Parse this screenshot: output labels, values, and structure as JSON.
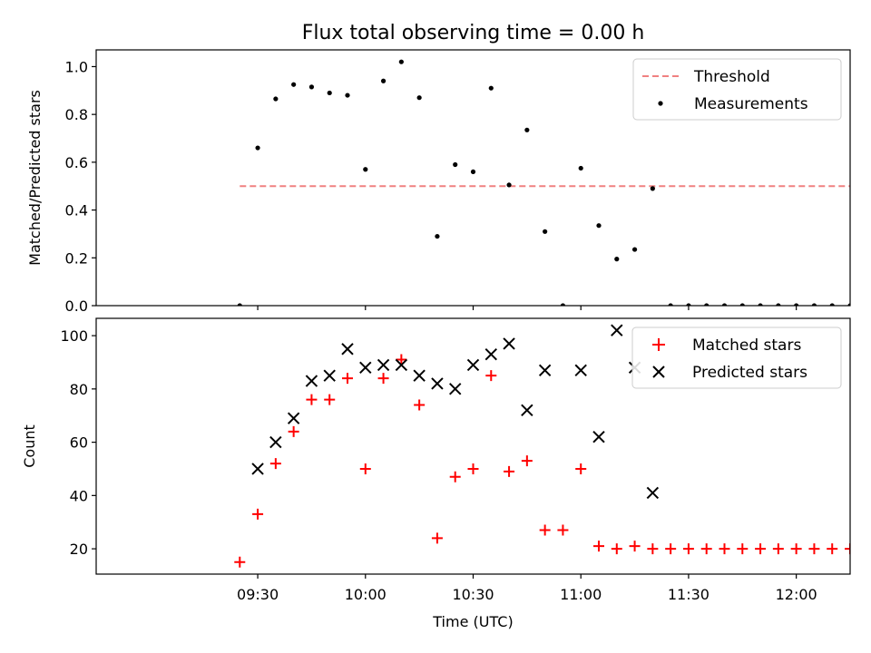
{
  "chart_data": [
    {
      "type": "scatter",
      "title": "Flux total observing time = 0.00 h",
      "xlabel": "",
      "ylabel": "Matched/Predicted stars",
      "x_unit": "minutes since 09:00 UTC",
      "xlim": [
        -15,
        195
      ],
      "ylim": [
        0.0,
        1.07
      ],
      "yticks": [
        0.0,
        0.2,
        0.4,
        0.6,
        0.8,
        1.0
      ],
      "ytick_labels": [
        "0.0",
        "0.2",
        "0.4",
        "0.6",
        "0.8",
        "1.0"
      ],
      "legend_position": "upper right",
      "series": [
        {
          "name": "Threshold",
          "kind": "dashed-line",
          "color": "#f08080",
          "x": [
            25,
            195
          ],
          "values": [
            0.5,
            0.5
          ]
        },
        {
          "name": "Measurements",
          "kind": "dot",
          "color": "#000000",
          "x": [
            25,
            30,
            35,
            40,
            45,
            50,
            55,
            60,
            65,
            70,
            75,
            80,
            85,
            90,
            95,
            100,
            105,
            110,
            115,
            120,
            125,
            130,
            135,
            140,
            145,
            150,
            155,
            160,
            165,
            170,
            175,
            180,
            185,
            190,
            195
          ],
          "values": [
            0.0,
            0.66,
            0.865,
            0.925,
            0.915,
            0.89,
            0.88,
            0.57,
            0.94,
            1.02,
            0.87,
            0.29,
            0.59,
            0.56,
            0.91,
            0.505,
            0.735,
            0.31,
            0.0,
            0.575,
            0.335,
            0.195,
            0.235,
            0.49,
            0.0,
            0.0,
            0.0,
            0.0,
            0.0,
            0.0,
            0.0,
            0.0,
            0.0,
            0.0,
            0.0
          ]
        }
      ]
    },
    {
      "type": "scatter",
      "title": "",
      "xlabel": "Time (UTC)",
      "ylabel": "Count",
      "x_unit": "minutes since 09:00 UTC",
      "xlim": [
        -15,
        195
      ],
      "ylim": [
        10.5,
        106.5
      ],
      "xticks": [
        30,
        60,
        90,
        120,
        150,
        180
      ],
      "xtick_labels": [
        "09:30",
        "10:00",
        "10:30",
        "11:00",
        "11:30",
        "12:00"
      ],
      "yticks": [
        20,
        40,
        60,
        80,
        100
      ],
      "ytick_labels": [
        "20",
        "40",
        "60",
        "80",
        "100"
      ],
      "legend_position": "upper right",
      "series": [
        {
          "name": "Matched stars",
          "kind": "plus",
          "color": "#ff0000",
          "x": [
            25,
            30,
            35,
            40,
            45,
            50,
            55,
            60,
            65,
            70,
            75,
            80,
            85,
            90,
            95,
            100,
            105,
            110,
            115,
            120,
            125,
            130,
            135,
            140,
            145,
            150,
            155,
            160,
            165,
            170,
            175,
            180,
            185,
            190,
            195
          ],
          "values": [
            15,
            33,
            52,
            64,
            76,
            76,
            84,
            50,
            84,
            91,
            74,
            24,
            47,
            50,
            85,
            49,
            53,
            27,
            27,
            50,
            21,
            20,
            21,
            20,
            20,
            20,
            20,
            20,
            20,
            20,
            20,
            20,
            20,
            20,
            20
          ]
        },
        {
          "name": "Predicted stars",
          "kind": "x",
          "color": "#000000",
          "x": [
            30,
            35,
            40,
            45,
            50,
            55,
            60,
            65,
            70,
            75,
            80,
            85,
            90,
            95,
            100,
            105,
            110,
            120,
            125,
            130,
            135,
            140
          ],
          "values": [
            50,
            60,
            69,
            83,
            85,
            95,
            88,
            89,
            89,
            85,
            82,
            80,
            89,
            93,
            97,
            72,
            87,
            87,
            62,
            102,
            88,
            41
          ]
        }
      ]
    }
  ]
}
